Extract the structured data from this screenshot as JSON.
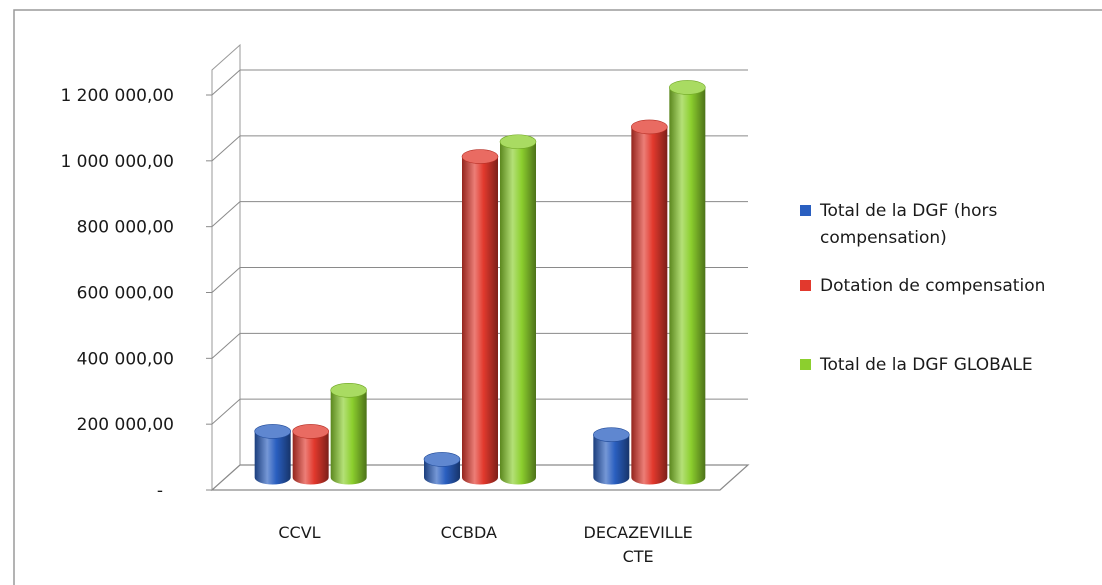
{
  "chart_data": {
    "type": "bar",
    "title": "",
    "xlabel": "",
    "ylabel": "",
    "ylim": [
      0,
      1200000
    ],
    "y_ticks": [
      "1 200 000,00",
      "1 000 000,00",
      "800 000,00",
      "600 000,00",
      "400 000,00",
      "200 000,00",
      "-"
    ],
    "y_tick_values": [
      1200000,
      1000000,
      800000,
      600000,
      400000,
      200000,
      0
    ],
    "grid": true,
    "legend_position": "right",
    "style": "3d-cylinder",
    "categories": [
      [
        "CCVL"
      ],
      [
        "CCBDA"
      ],
      [
        "DECAZEVILLE",
        "CTE"
      ]
    ],
    "series": [
      {
        "name_lines": [
          "Total de la DGF (hors",
          "compensation)"
        ],
        "color": "#2a5fc0",
        "values": [
          140000,
          55000,
          130000
        ]
      },
      {
        "name_lines": [
          "Dotation de compensation"
        ],
        "color": "#e2392d",
        "values": [
          140000,
          975000,
          1065000
        ]
      },
      {
        "name_lines": [
          "Total de la DGF GLOBALE"
        ],
        "color": "#8ccf2e",
        "values": [
          265000,
          1020000,
          1185000
        ]
      }
    ]
  }
}
